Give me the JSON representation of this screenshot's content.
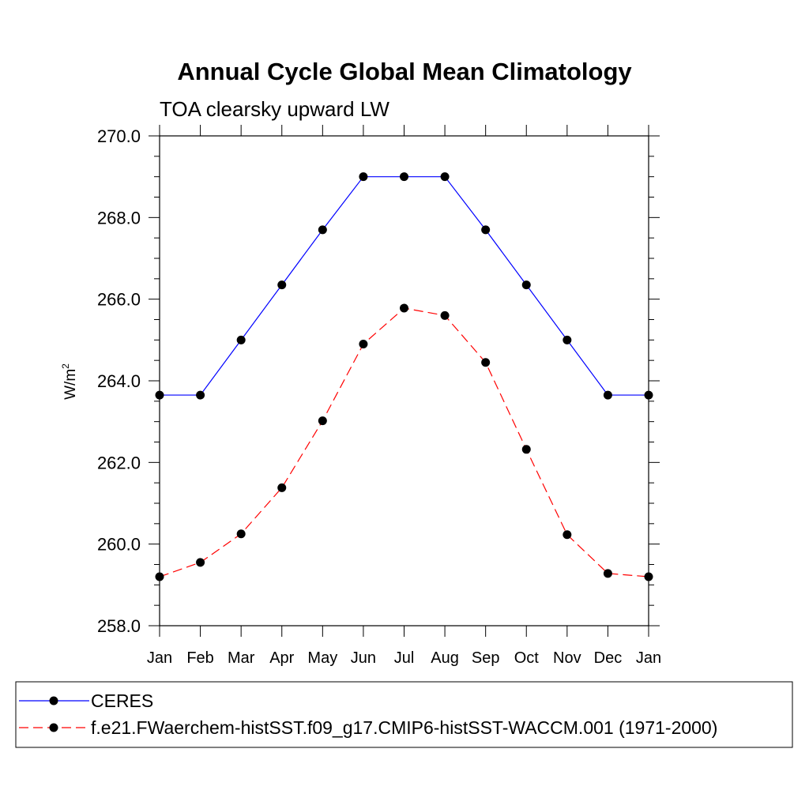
{
  "chart_data": {
    "type": "line",
    "title": "Annual Cycle Global Mean Climatology",
    "subtitle": "TOA clearsky upward LW",
    "ylabel": "W/m",
    "ylabel_superscript": "2",
    "xlabel": "",
    "categories": [
      "Jan",
      "Feb",
      "Mar",
      "Apr",
      "May",
      "Jun",
      "Jul",
      "Aug",
      "Sep",
      "Oct",
      "Nov",
      "Dec",
      "Jan"
    ],
    "ylim": [
      258.0,
      270.0
    ],
    "yticks": [
      "258.0",
      "260.0",
      "262.0",
      "264.0",
      "266.0",
      "268.0",
      "270.0"
    ],
    "yminor_step": 0.5,
    "grid": false,
    "legend_position": "bottom",
    "series": [
      {
        "name": "CERES",
        "color": "#0000ff",
        "dash": "solid",
        "marker": "circle",
        "values": [
          263.65,
          263.65,
          265.0,
          266.35,
          267.7,
          269.0,
          269.0,
          269.0,
          267.7,
          266.35,
          265.0,
          263.65,
          263.65
        ]
      },
      {
        "name": "f.e21.FWaerchem-histSST.f09_g17.CMIP6-histSST-WACCM.001 (1971-2000)",
        "color": "#ff0000",
        "dash": "dashed",
        "marker": "circle",
        "values": [
          259.2,
          259.55,
          260.25,
          261.38,
          263.02,
          264.9,
          265.78,
          265.6,
          264.45,
          262.32,
          260.23,
          259.28,
          259.2
        ]
      }
    ]
  }
}
